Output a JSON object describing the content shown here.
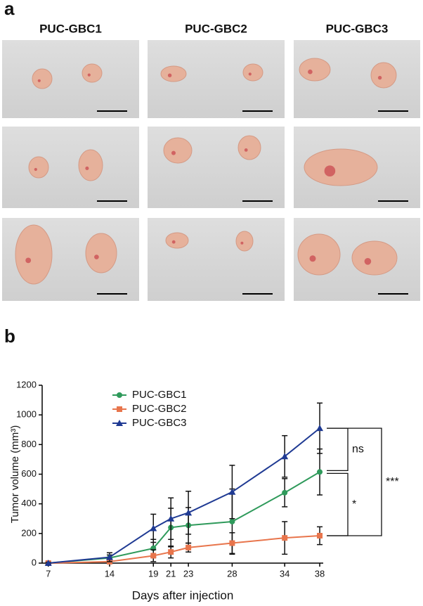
{
  "panel_a": {
    "label": "a",
    "columns": [
      "PUC-GBC1",
      "PUC-GBC2",
      "PUC-GBC3"
    ]
  },
  "panel_b_label": "b",
  "chart_data": {
    "type": "line",
    "x_label": "Days after injection",
    "y_label": "Tumor volume (mm³)",
    "x": [
      7,
      14,
      19,
      21,
      23,
      28,
      34,
      38
    ],
    "xlim": [
      6.3,
      38.4
    ],
    "xticks": [
      7,
      14,
      19,
      21,
      23,
      28,
      34,
      38
    ],
    "ylim": [
      0,
      1200
    ],
    "yticks": [
      0,
      200,
      400,
      600,
      800,
      1000,
      1200
    ],
    "legend": "upper left",
    "series": [
      {
        "name": "PUC-GBC1",
        "color": "#2f9a5b",
        "marker": "circle",
        "values": [
          0,
          35,
          100,
          240,
          255,
          280,
          475,
          615
        ],
        "errors": [
          5,
          20,
          60,
          130,
          120,
          220,
          95,
          155
        ]
      },
      {
        "name": "PUC-GBC2",
        "color": "#e8754c",
        "marker": "square",
        "values": [
          0,
          10,
          50,
          75,
          105,
          135,
          170,
          185
        ],
        "errors": [
          5,
          10,
          40,
          40,
          30,
          70,
          110,
          60
        ]
      },
      {
        "name": "PUC-GBC3",
        "color": "#1f3a93",
        "marker": "triangle",
        "values": [
          0,
          40,
          235,
          300,
          340,
          480,
          720,
          910
        ],
        "errors": [
          5,
          30,
          95,
          140,
          145,
          180,
          140,
          170
        ]
      }
    ],
    "annotations": [
      {
        "text": "ns",
        "between": [
          2,
          0
        ]
      },
      {
        "text": "*",
        "between": [
          0,
          1
        ]
      },
      {
        "text": "***",
        "between": [
          2,
          1
        ]
      }
    ]
  }
}
